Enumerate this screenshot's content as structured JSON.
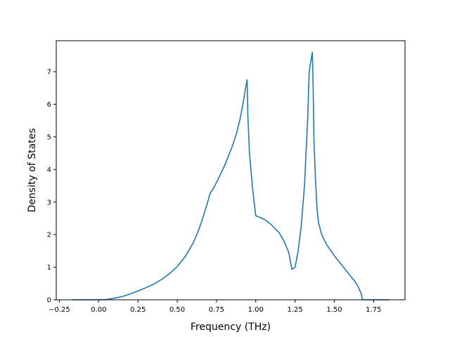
{
  "chart_data": {
    "type": "line",
    "title": "",
    "xlabel": "Frequency (THz)",
    "ylabel": "Density of States",
    "xlim": [
      -0.27,
      1.95
    ],
    "ylim": [
      0,
      7.95
    ],
    "grid": false,
    "x_ticks": [
      -0.25,
      0.0,
      0.25,
      0.5,
      0.75,
      1.0,
      1.25,
      1.5,
      1.75
    ],
    "x_tick_labels": [
      "−0.25",
      "0.00",
      "0.25",
      "0.50",
      "0.75",
      "1.00",
      "1.25",
      "1.50",
      "1.75"
    ],
    "y_ticks": [
      0,
      1,
      2,
      3,
      4,
      5,
      6,
      7
    ],
    "y_tick_labels": [
      "0",
      "1",
      "2",
      "3",
      "4",
      "5",
      "6",
      "7"
    ],
    "series": [
      {
        "color": "#1f77b4",
        "x": [
          -0.17,
          -0.05,
          0.0,
          0.05,
          0.1,
          0.15,
          0.2,
          0.25,
          0.3,
          0.35,
          0.4,
          0.45,
          0.5,
          0.55,
          0.6,
          0.625,
          0.65,
          0.675,
          0.7,
          0.71,
          0.72,
          0.73,
          0.75,
          0.8,
          0.85,
          0.88,
          0.9,
          0.92,
          0.935,
          0.945,
          0.95,
          0.96,
          0.98,
          1.0,
          1.01,
          1.03,
          1.06,
          1.1,
          1.15,
          1.18,
          1.21,
          1.23,
          1.25,
          1.27,
          1.29,
          1.31,
          1.33,
          1.34,
          1.35,
          1.36,
          1.365,
          1.37,
          1.38,
          1.39,
          1.4,
          1.42,
          1.45,
          1.5,
          1.55,
          1.6,
          1.63,
          1.65,
          1.67,
          1.68,
          1.75,
          1.85
        ],
        "y": [
          0.0,
          0.0,
          0.0,
          0.01,
          0.05,
          0.1,
          0.18,
          0.27,
          0.37,
          0.48,
          0.62,
          0.8,
          1.02,
          1.32,
          1.73,
          2.0,
          2.32,
          2.7,
          3.1,
          3.28,
          3.34,
          3.42,
          3.6,
          4.1,
          4.7,
          5.15,
          5.55,
          6.05,
          6.5,
          6.75,
          5.6,
          4.5,
          3.4,
          2.58,
          2.56,
          2.52,
          2.45,
          2.3,
          2.05,
          1.8,
          1.45,
          0.93,
          1.0,
          1.5,
          2.3,
          3.5,
          5.5,
          7.0,
          7.3,
          7.6,
          6.6,
          5.0,
          3.7,
          2.8,
          2.35,
          2.0,
          1.7,
          1.35,
          1.05,
          0.75,
          0.57,
          0.42,
          0.2,
          0.0,
          0.0,
          0.0
        ]
      }
    ]
  }
}
